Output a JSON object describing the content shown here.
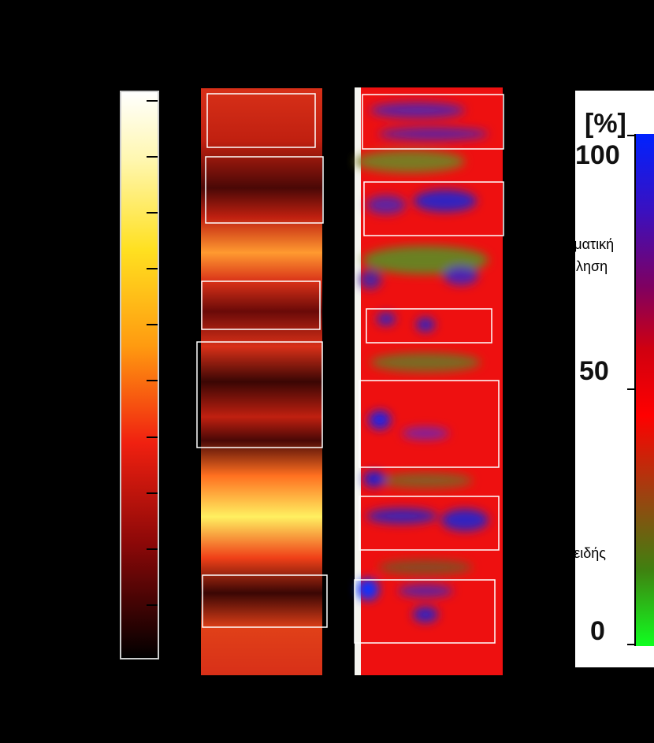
{
  "scale": {
    "unit": "[%]",
    "ticks": [
      "100",
      "50",
      "0"
    ]
  },
  "labels": [
    "ρματική",
    "ληση",
    "ρειδής"
  ]
}
